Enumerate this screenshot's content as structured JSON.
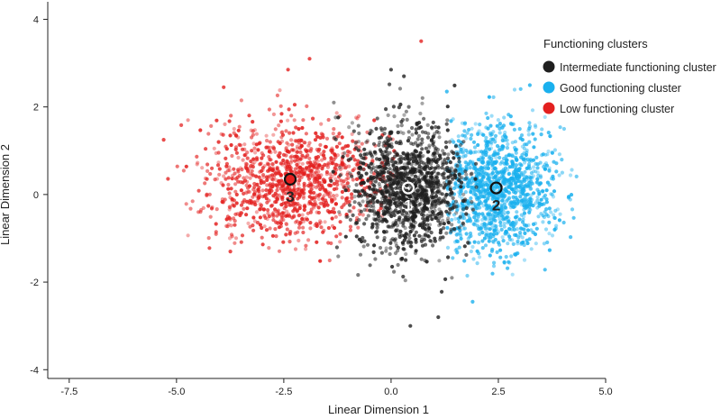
{
  "chart_data": {
    "type": "scatter",
    "title": "",
    "xlabel": "Linear Dimension 1",
    "ylabel": "Linear Dimension 2",
    "xlim": [
      -8,
      5
    ],
    "ylim": [
      -4.2,
      4.4
    ],
    "x_ticks": [
      {
        "value": -7.5,
        "label": "-7.5"
      },
      {
        "value": -5.0,
        "label": "-5.0"
      },
      {
        "value": -2.5,
        "label": "-2.5"
      },
      {
        "value": 0.0,
        "label": "0.0"
      },
      {
        "value": 2.5,
        "label": "2.5"
      },
      {
        "value": 5.0,
        "label": "5.0"
      }
    ],
    "y_ticks": [
      {
        "value": -4,
        "label": "-4"
      },
      {
        "value": -2,
        "label": "-2"
      },
      {
        "value": 0,
        "label": "0"
      },
      {
        "value": 2,
        "label": "2"
      },
      {
        "value": 4,
        "label": "4"
      }
    ],
    "grid": false,
    "legend": {
      "title": "Functioning clusters",
      "position": "top-right",
      "items": [
        {
          "label": "Intermediate functioning cluster",
          "color": "#1f1f1f"
        },
        {
          "label": "Good functioning cluster",
          "color": "#1ab0ee"
        },
        {
          "label": "Low functioning cluster",
          "color": "#e3201f"
        }
      ]
    },
    "series": [
      {
        "name": "Low functioning cluster",
        "color": "#e3201f",
        "centroid": {
          "x": -2.35,
          "y": 0.35,
          "label": "3"
        },
        "spread": {
          "sx": 1.05,
          "sy": 0.65
        },
        "x_range": [
          -5.3,
          0.2
        ],
        "approx_points": 1100,
        "outliers": [
          {
            "x": -5.3,
            "y": 1.25
          },
          {
            "x": -3.9,
            "y": 2.45
          },
          {
            "x": -1.9,
            "y": 3.1
          },
          {
            "x": -2.4,
            "y": 2.85
          },
          {
            "x": 0.7,
            "y": 3.5
          }
        ]
      },
      {
        "name": "Intermediate functioning cluster",
        "color": "#1f1f1f",
        "centroid": {
          "x": 0.4,
          "y": 0.15,
          "label": "1"
        },
        "spread": {
          "sx": 0.65,
          "sy": 0.75
        },
        "x_range": [
          -1.4,
          2.0
        ],
        "approx_points": 1300,
        "outliers": [
          {
            "x": 0.0,
            "y": 2.85
          },
          {
            "x": 0.3,
            "y": 2.7
          },
          {
            "x": 0.45,
            "y": -3.0
          },
          {
            "x": 1.1,
            "y": -2.8
          }
        ]
      },
      {
        "name": "Good functioning cluster",
        "color": "#1ab0ee",
        "centroid": {
          "x": 2.45,
          "y": 0.15,
          "label": "2"
        },
        "spread": {
          "sx": 0.75,
          "sy": 0.75
        },
        "x_range": [
          1.3,
          4.35
        ],
        "approx_points": 1200,
        "outliers": [
          {
            "x": 1.9,
            "y": -2.45
          },
          {
            "x": 1.3,
            "y": 2.35
          }
        ]
      }
    ]
  }
}
